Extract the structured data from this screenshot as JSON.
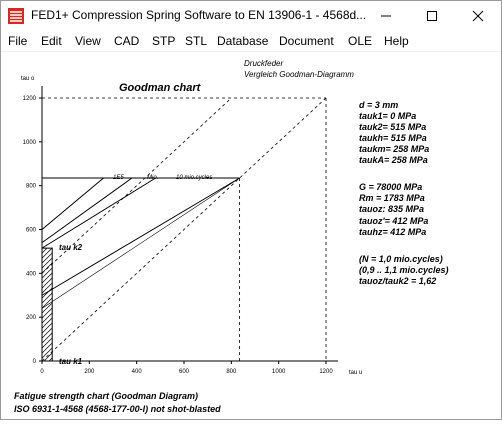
{
  "window": {
    "title": "FED1+  Compression Spring Software to EN 13906-1  -  4568d...",
    "app_icon": "spring-icon"
  },
  "menu": [
    "File",
    "Edit",
    "View",
    "CAD",
    "STP",
    "STL",
    "Database",
    "Document",
    "OLE",
    "Help"
  ],
  "header": {
    "line1": "Druckfeder",
    "line2": "Vergleich Goodman-Diagramm"
  },
  "chart_data": {
    "type": "line",
    "title": "Goodman chart",
    "xlabel": "tau u",
    "ylabel": "tau o",
    "xlim": [
      0,
      1200
    ],
    "ylim": [
      0,
      1200
    ],
    "x_ticks": [
      "0",
      "200",
      "400",
      "600",
      "800",
      "1000",
      "1200"
    ],
    "y_ticks": [
      "0",
      "200",
      "400",
      "600",
      "800",
      "1000",
      "1200"
    ],
    "cycle_labels": [
      "1E5",
      "Mio.",
      "10 mio.cycles"
    ],
    "tau_k1_label": "tau k1",
    "tau_k2_label": "tau k2",
    "lines": {
      "diagonal": [
        [
          0,
          0
        ],
        [
          1200,
          1200
        ]
      ],
      "upper_dashed": [
        [
          0,
          400
        ],
        [
          800,
          1200
        ]
      ],
      "horizontal_limit": [
        [
          0,
          835
        ],
        [
          835,
          835
        ]
      ],
      "vertical_limit": [
        [
          835,
          835
        ],
        [
          835,
          0
        ]
      ],
      "cycle_1e5": [
        [
          0,
          600
        ],
        [
          260,
          835
        ]
      ],
      "cycle_mio": [
        [
          0,
          540
        ],
        [
          380,
          835
        ]
      ],
      "cycle_10mio": [
        [
          0,
          515
        ],
        [
          480,
          835
        ]
      ],
      "hatch_bar_x": [
        0,
        60
      ],
      "hatch_bar_y": [
        0,
        515
      ]
    }
  },
  "properties": [
    "d  = 3 mm",
    "tauk1=    0 MPa",
    "tauk2=  515 MPa",
    "taukh=  515 MPa",
    "taukm=  258 MPa",
    "taukA=  258 MPa",
    "",
    "G  = 78000 MPa",
    "Rm =  1783 MPa",
    "tauoz:  835 MPa",
    "tauoz'=  412 MPa",
    "tauhz=  412 MPa",
    "",
    "(N = 1,0 mio.cycles)",
    "(0,9 .. 1,1 mio.cycles)",
    "tauoz/tauk2 = 1,62"
  ],
  "footer": {
    "line1": "Fatigue strength chart (Goodman Diagram)",
    "line2": "ISO 6931-1-4568 (4568-177-00-I) not shot-blasted"
  }
}
